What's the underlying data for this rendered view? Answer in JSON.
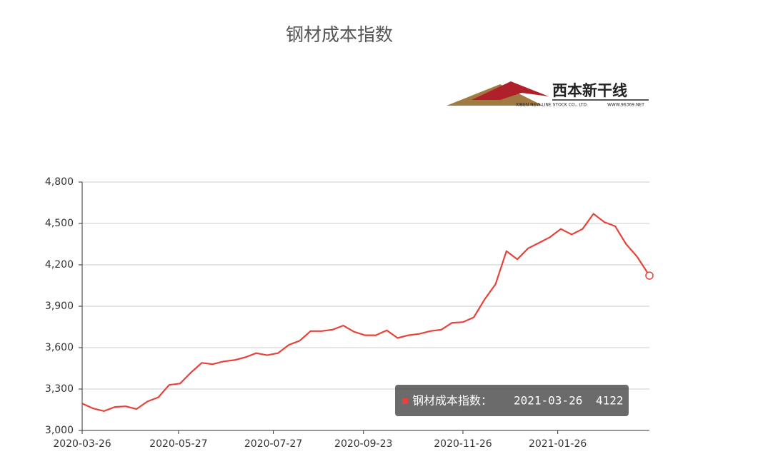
{
  "chart_data": {
    "type": "line",
    "title": "钢材成本指数",
    "logo": {
      "name": "西本新干线",
      "company": "XIBEN NEW LINE STOCK CO., LTD.",
      "url": "WWW.96369.NET"
    },
    "x": [
      "2020-03-26",
      "2020-04-02",
      "2020-04-09",
      "2020-04-16",
      "2020-04-23",
      "2020-04-30",
      "2020-05-07",
      "2020-05-14",
      "2020-05-21",
      "2020-05-28",
      "2020-06-04",
      "2020-06-11",
      "2020-06-18",
      "2020-06-25",
      "2020-07-02",
      "2020-07-09",
      "2020-07-16",
      "2020-07-23",
      "2020-07-30",
      "2020-08-06",
      "2020-08-13",
      "2020-08-20",
      "2020-08-27",
      "2020-09-03",
      "2020-09-10",
      "2020-09-17",
      "2020-09-24",
      "2020-10-01",
      "2020-10-08",
      "2020-10-15",
      "2020-10-22",
      "2020-10-29",
      "2020-11-05",
      "2020-11-12",
      "2020-11-19",
      "2020-11-26",
      "2020-12-03",
      "2020-12-10",
      "2020-12-17",
      "2020-12-24",
      "2020-12-31",
      "2021-01-07",
      "2021-01-14",
      "2021-01-21",
      "2021-01-28",
      "2021-02-04",
      "2021-02-11",
      "2021-02-18",
      "2021-02-25",
      "2021-03-04",
      "2021-03-11",
      "2021-03-18",
      "2021-03-26"
    ],
    "series": [
      {
        "name": "钢材成本指数",
        "color": "#e8423a",
        "values": [
          3195,
          3160,
          3140,
          3170,
          3175,
          3155,
          3210,
          3240,
          3330,
          3340,
          3420,
          3490,
          3480,
          3500,
          3510,
          3530,
          3560,
          3545,
          3560,
          3620,
          3650,
          3720,
          3720,
          3730,
          3760,
          3715,
          3690,
          3690,
          3725,
          3670,
          3690,
          3700,
          3720,
          3730,
          3780,
          3785,
          3820,
          3950,
          4060,
          4300,
          4240,
          4320,
          4360,
          4400,
          4460,
          4420,
          4460,
          4570,
          4510,
          4480,
          4350,
          4260,
          4122
        ]
      }
    ],
    "xlim": [
      "2020-03-26",
      "2021-03-26"
    ],
    "xticks": [
      "2020-03-26",
      "2020-05-27",
      "2020-07-27",
      "2020-09-23",
      "2020-11-26",
      "2021-01-26"
    ],
    "ylim": [
      3000,
      4800
    ],
    "yticks": [
      {
        "value": 3000,
        "label": "3,000"
      },
      {
        "value": 3300,
        "label": "3,300"
      },
      {
        "value": 3600,
        "label": "3,600"
      },
      {
        "value": 3900,
        "label": "3,900"
      },
      {
        "value": 4200,
        "label": "4,200"
      },
      {
        "value": 4500,
        "label": "4,500"
      },
      {
        "value": 4800,
        "label": "4,800"
      }
    ],
    "grid": true,
    "tooltip": {
      "label": "钢材成本指数：",
      "date": "2021-03-26",
      "value": 4122
    }
  }
}
